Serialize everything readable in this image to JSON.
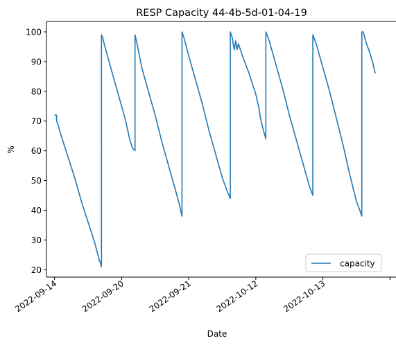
{
  "chart_data": {
    "type": "line",
    "title": "RESP Capacity 44-4b-5d-01-04-19",
    "xlabel": "Date",
    "ylabel": "%",
    "x_ticks": [
      "2022-09-14",
      "2022-09-20",
      "2022-09-21",
      "2022-10-12",
      "2022-10-13",
      ""
    ],
    "xlim": [
      -0.12,
      5.1
    ],
    "ylim": [
      17.5,
      103.5
    ],
    "y_ticks": [
      20,
      30,
      40,
      50,
      60,
      70,
      80,
      90,
      100
    ],
    "y_tick_labels": [
      "20",
      "30",
      "40",
      "50",
      "60",
      "70",
      "80",
      "90",
      "100"
    ],
    "grid": false,
    "legend_position": "lower-right",
    "series": [
      {
        "name": "capacity",
        "color": "#1f77b4",
        "points": [
          [
            0.0,
            72
          ],
          [
            0.03,
            72
          ],
          [
            0.03,
            70
          ],
          [
            0.05,
            69
          ],
          [
            0.1,
            65
          ],
          [
            0.2,
            58
          ],
          [
            0.3,
            51
          ],
          [
            0.4,
            43
          ],
          [
            0.5,
            36
          ],
          [
            0.6,
            29
          ],
          [
            0.67,
            23
          ],
          [
            0.69,
            22
          ],
          [
            0.7,
            21
          ],
          [
            0.7,
            99
          ],
          [
            0.72,
            98
          ],
          [
            0.74,
            96
          ],
          [
            0.85,
            87
          ],
          [
            0.95,
            79
          ],
          [
            1.05,
            71
          ],
          [
            1.12,
            64
          ],
          [
            1.16,
            61
          ],
          [
            1.2,
            60
          ],
          [
            1.2,
            99
          ],
          [
            1.23,
            96
          ],
          [
            1.3,
            88
          ],
          [
            1.4,
            80
          ],
          [
            1.5,
            72
          ],
          [
            1.6,
            63
          ],
          [
            1.7,
            55
          ],
          [
            1.8,
            47
          ],
          [
            1.86,
            42
          ],
          [
            1.9,
            38
          ],
          [
            1.9,
            100
          ],
          [
            1.93,
            98
          ],
          [
            2.0,
            92
          ],
          [
            2.1,
            84
          ],
          [
            2.2,
            76
          ],
          [
            2.3,
            67
          ],
          [
            2.4,
            59
          ],
          [
            2.5,
            51
          ],
          [
            2.58,
            46
          ],
          [
            2.62,
            44
          ],
          [
            2.62,
            100
          ],
          [
            2.65,
            98
          ],
          [
            2.67,
            95
          ],
          [
            2.68,
            94
          ],
          [
            2.7,
            97
          ],
          [
            2.72,
            94
          ],
          [
            2.74,
            96
          ],
          [
            2.8,
            92
          ],
          [
            2.9,
            86
          ],
          [
            3.0,
            79
          ],
          [
            3.05,
            74
          ],
          [
            3.07,
            71
          ],
          [
            3.1,
            68
          ],
          [
            3.15,
            64
          ],
          [
            3.15,
            100
          ],
          [
            3.2,
            97
          ],
          [
            3.3,
            89
          ],
          [
            3.4,
            81
          ],
          [
            3.5,
            72
          ],
          [
            3.6,
            64
          ],
          [
            3.7,
            56
          ],
          [
            3.8,
            48
          ],
          [
            3.85,
            45
          ],
          [
            3.85,
            99
          ],
          [
            3.9,
            96
          ],
          [
            4.0,
            88
          ],
          [
            4.1,
            80
          ],
          [
            4.2,
            71
          ],
          [
            4.3,
            62
          ],
          [
            4.4,
            52
          ],
          [
            4.5,
            43
          ],
          [
            4.55,
            40
          ],
          [
            4.58,
            38
          ],
          [
            4.58,
            100
          ],
          [
            4.6,
            100
          ],
          [
            4.65,
            96
          ],
          [
            4.7,
            93
          ],
          [
            4.75,
            89
          ],
          [
            4.78,
            86
          ]
        ]
      }
    ]
  }
}
